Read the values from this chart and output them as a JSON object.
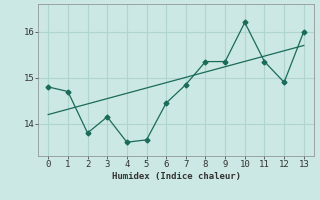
{
  "x_data": [
    0,
    1,
    2,
    3,
    4,
    5,
    6,
    7,
    8,
    9,
    10,
    11,
    12,
    13
  ],
  "y_data": [
    14.8,
    14.7,
    13.8,
    14.15,
    13.6,
    13.65,
    14.45,
    14.85,
    15.35,
    15.35,
    16.2,
    15.35,
    14.9,
    16.0
  ],
  "trend_x": [
    0,
    13
  ],
  "trend_y": [
    14.2,
    15.7
  ],
  "bg_color": "#cce8e4",
  "grid_color": "#b0d4d0",
  "line_color": "#1a6b5a",
  "xlabel": "Humidex (Indice chaleur)",
  "yticks": [
    14,
    15,
    16
  ],
  "xticks": [
    0,
    1,
    2,
    3,
    4,
    5,
    6,
    7,
    8,
    9,
    10,
    11,
    12,
    13
  ],
  "ylim": [
    13.3,
    16.6
  ],
  "xlim": [
    -0.5,
    13.5
  ]
}
